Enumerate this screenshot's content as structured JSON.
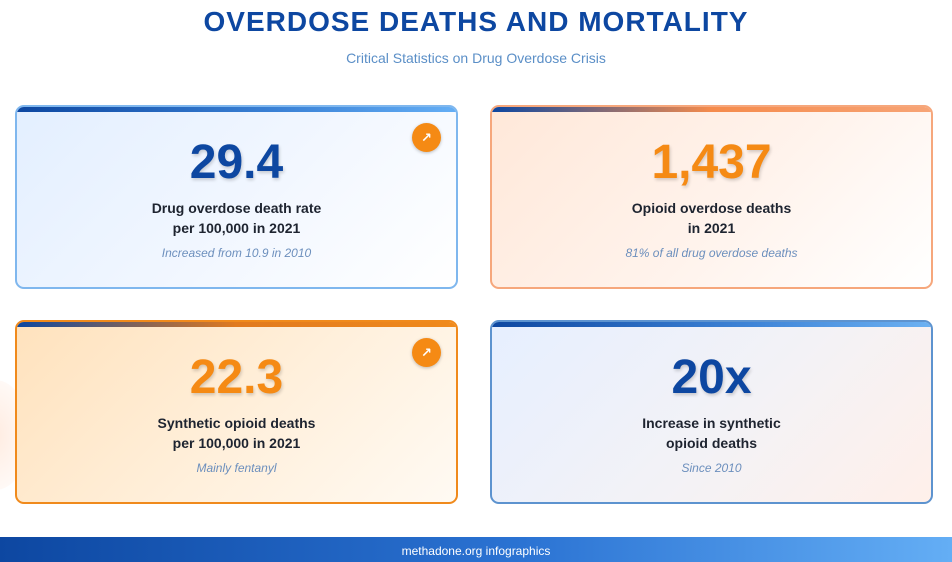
{
  "header": {
    "title": "OVERDOSE DEATHS AND MORTALITY",
    "subtitle": "Critical Statistics on Drug Overdose Crisis"
  },
  "cards": [
    {
      "value": "29.4",
      "label_line1": "Drug overdose death rate",
      "label_line2": "per 100,000 in 2021",
      "note": "Increased from 10.9 in 2010",
      "icon": "trend-up-icon",
      "icon_glyph": "↗"
    },
    {
      "value": "1,437",
      "label_line1": "Opioid overdose deaths",
      "label_line2": "in 2021",
      "note": "81% of all drug overdose deaths"
    },
    {
      "value": "22.3",
      "label_line1": "Synthetic opioid deaths",
      "label_line2": "per 100,000 in 2021",
      "note": "Mainly fentanyl",
      "icon": "trend-up-icon",
      "icon_glyph": "↗"
    },
    {
      "value": "20x",
      "label_line1": "Increase in synthetic",
      "label_line2": "opioid deaths",
      "note": "Since 2010"
    }
  ],
  "footer": {
    "text": "methadone.org infographics"
  },
  "colors": {
    "primary_blue": "#0d47a1",
    "accent_orange": "#f58a14",
    "note_text": "#6c8fbd"
  }
}
